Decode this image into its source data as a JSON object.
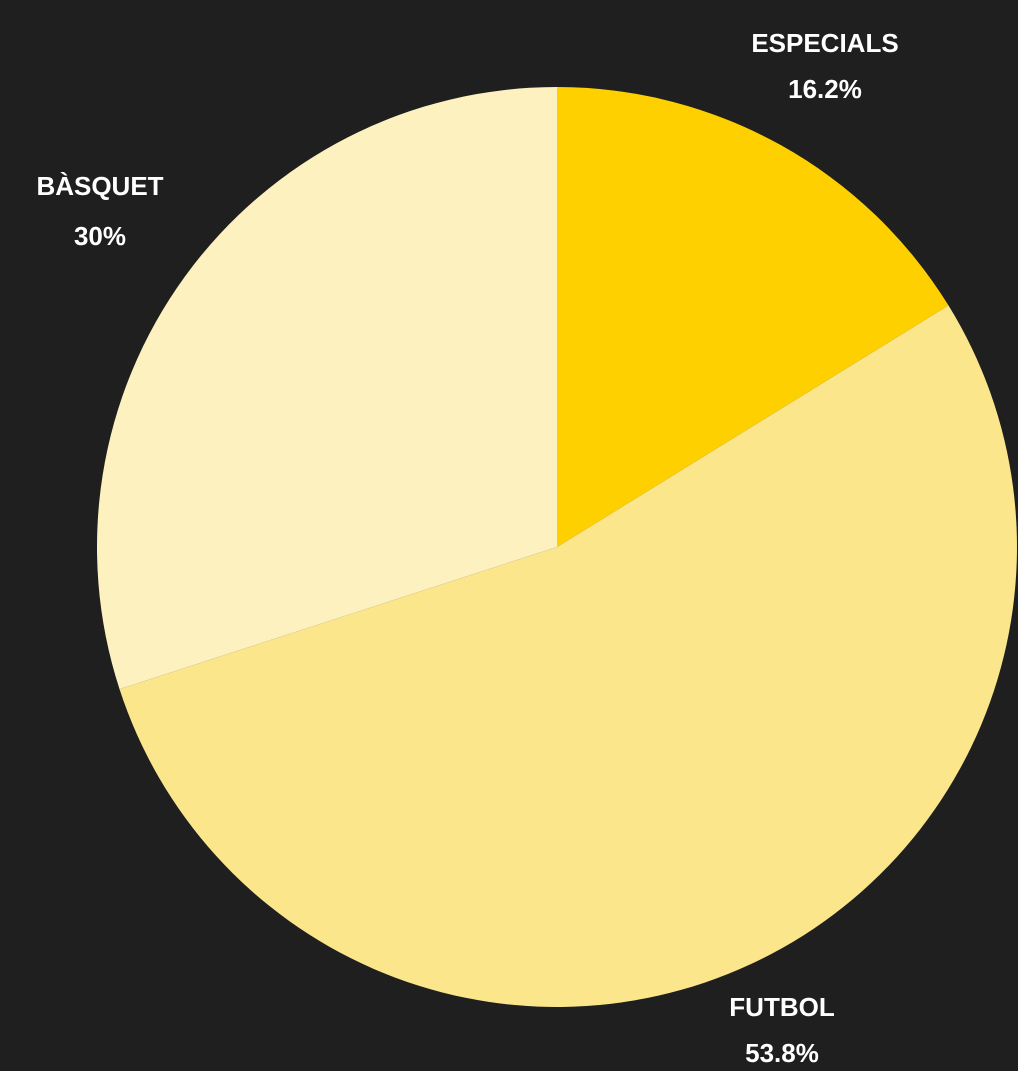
{
  "chart_data": {
    "type": "pie",
    "categories": [
      "ESPECIALS",
      "FUTBOL",
      "BÀSQUET"
    ],
    "values": [
      16.2,
      53.8,
      30
    ],
    "value_labels": [
      "16.2%",
      "53.8%",
      "30%"
    ],
    "colors": [
      "#ffd000",
      "#fbe68b",
      "#fdf2bf"
    ],
    "start": "12 o'clock",
    "direction": "clockwise",
    "background": "#1f1f1f",
    "label_color": "#ffffff"
  }
}
